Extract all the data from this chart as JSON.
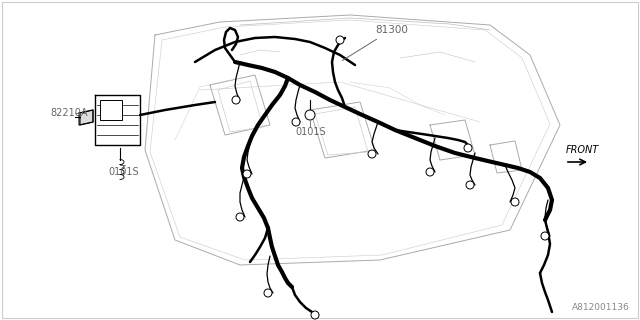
{
  "bg_color": "#ffffff",
  "diagram_id": "A812001136",
  "labels": {
    "part_number": "81300",
    "connector1": "82210A",
    "ground1": "0101S",
    "ground2": "0101S",
    "front": "FRONT"
  },
  "thick_lw": 3.0,
  "med_lw": 1.8,
  "thin_lw": 0.7,
  "panel_line_color": "#aaaaaa",
  "wire_color": "#000000",
  "label_color": "#666666",
  "figsize": [
    6.4,
    3.2
  ],
  "dpi": 100
}
